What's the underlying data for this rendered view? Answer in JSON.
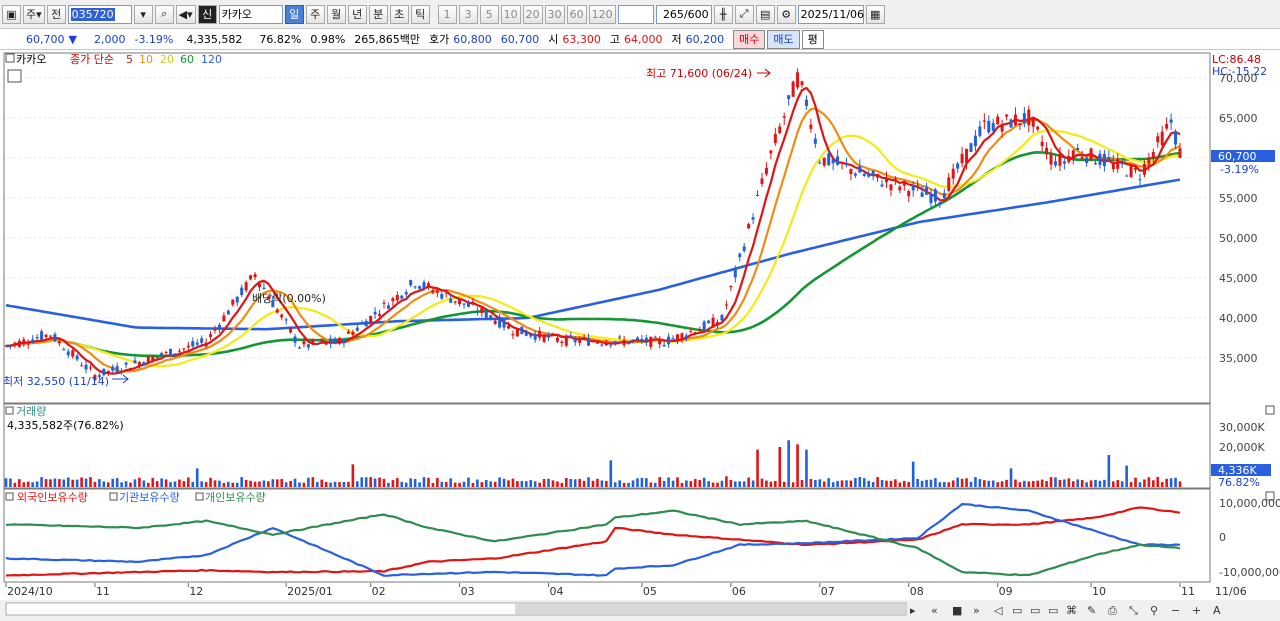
{
  "toolbar": {
    "period_type": "주",
    "prev_label": "전",
    "stock_code": "035720",
    "shin_label": "신",
    "stock_name": "카카오",
    "period_tabs": [
      "일",
      "주",
      "월",
      "년",
      "분",
      "초",
      "틱"
    ],
    "active_period": "일",
    "interval_buttons": [
      "1",
      "3",
      "5",
      "10",
      "20",
      "30",
      "60",
      "120"
    ],
    "count_value": "265",
    "count_total": "/600",
    "date_value": "2025/11/06"
  },
  "quote": {
    "price": "60,700",
    "change_arrow": "▼",
    "change": "2,000",
    "change_pct": "-3.19%",
    "volume": "4,335,582",
    "volume_pct": "76.82%",
    "turnover_pct": "0.98%",
    "amount": "265,865백만",
    "bid_label": "호가",
    "bid1": "60,800",
    "bid2": "60,700",
    "open_label": "시",
    "open": "63,300",
    "high_label": "고",
    "high": "64,000",
    "low_label": "저",
    "low": "60,200",
    "buy_label": "매수",
    "sell_label": "매도",
    "eval_label": "평"
  },
  "price_panel": {
    "title": "카카오",
    "ma_prefix": "종가 단순",
    "ma_labels": [
      "5",
      "10",
      "20",
      "60",
      "120"
    ],
    "ma_colors": [
      "#e01414",
      "#f08c14",
      "#f5ea14",
      "#149632",
      "#2860e0"
    ],
    "lc_label": "LC:86.48",
    "hc_label": "HC:-15.22",
    "y_labels": [
      "70,000",
      "65,000",
      "60,000",
      "55,000",
      "50,000",
      "45,000",
      "40,000",
      "35,000"
    ],
    "current_price_tag": "60,700",
    "current_change_tag": "-3.19%",
    "high_annotation": "최고 71,600 (06/24)",
    "low_annotation": "최저 32,550 (11/14)",
    "dividend_annotation": "배당락(0.00%)"
  },
  "volume_panel": {
    "title": "거래량",
    "subtitle": "4,335,582주(76.82%)",
    "y_labels": [
      "30,000K",
      "20,000K"
    ],
    "current_tag": "4,336K",
    "current_pct_tag": "76.82%"
  },
  "holding_panel": {
    "legend": [
      "외국인보유수량",
      "기관보유수량",
      "개인보유수량"
    ],
    "colors": [
      "#e01414",
      "#2860e0",
      "#2e8c50"
    ],
    "y_labels": [
      "10,000,000",
      "0",
      "-10,000,000"
    ]
  },
  "x_axis": {
    "labels": [
      "2024/10",
      "11",
      "12",
      "2025/01",
      "02",
      "03",
      "04",
      "05",
      "06",
      "07",
      "08",
      "09",
      "10",
      "11",
      "11/06"
    ]
  },
  "chart_data": {
    "type": "line",
    "series": [
      {
        "name": "종가",
        "x": [
          "2024/10",
          "2024/11/14",
          "2024/12",
          "2025/01",
          "2025/02",
          "2025/03",
          "2025/04",
          "2025/05",
          "2025/06",
          "2025/06/24",
          "2025/07",
          "2025/08",
          "2025/09",
          "2025/10",
          "2025/11/06"
        ],
        "values": [
          36200,
          32550,
          44500,
          37500,
          36000,
          44000,
          40500,
          38500,
          40000,
          71600,
          59500,
          56500,
          64000,
          59500,
          60700
        ]
      },
      {
        "name": "120",
        "x": [
          "2024/10",
          "2024/12",
          "2025/03",
          "2025/05",
          "2025/06",
          "2025/07",
          "2025/08",
          "2025/09",
          "2025/10",
          "2025/11/06"
        ],
        "values": [
          41600,
          38800,
          38600,
          39600,
          40000,
          43500,
          48000,
          52000,
          54500,
          57300
        ]
      }
    ],
    "ylim": [
      32000,
      72000
    ]
  }
}
